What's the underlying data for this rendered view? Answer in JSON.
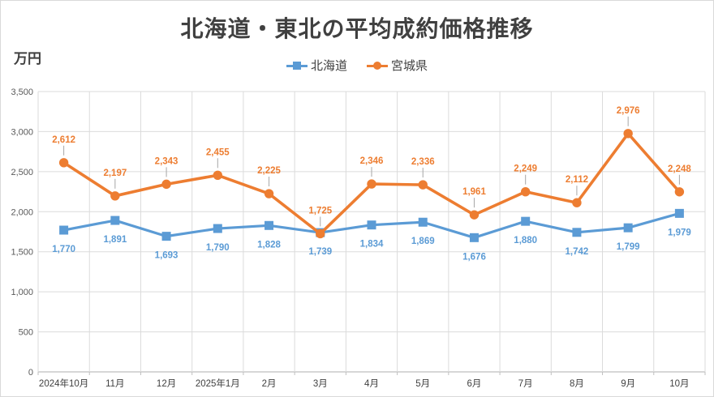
{
  "chart": {
    "title": "北海道・東北の平均成約価格推移",
    "unit_label": "万円"
  },
  "legend": {
    "items": [
      {
        "label": "北海道"
      },
      {
        "label": "宮城県"
      }
    ]
  },
  "chart_data": {
    "type": "line",
    "title": "北海道・東北の平均成約価格推移",
    "xlabel": "",
    "ylabel": "万円",
    "categories": [
      "2024年10月",
      "11月",
      "12月",
      "2025年1月",
      "2月",
      "3月",
      "4月",
      "5月",
      "6月",
      "7月",
      "8月",
      "9月",
      "10月"
    ],
    "series": [
      {
        "name": "北海道",
        "color": "#5B9BD5",
        "marker": "square",
        "label_position": "below",
        "values": [
          1770,
          1891,
          1693,
          1790,
          1828,
          1739,
          1834,
          1869,
          1676,
          1880,
          1742,
          1799,
          1979
        ]
      },
      {
        "name": "宮城県",
        "color": "#ED7D31",
        "marker": "circle",
        "label_position": "above",
        "values": [
          2612,
          2197,
          2343,
          2455,
          2225,
          1725,
          2346,
          2336,
          1961,
          2249,
          2112,
          2976,
          2248
        ]
      }
    ],
    "ylim": [
      0,
      3500
    ],
    "ytick_step": 500,
    "grid": true,
    "data_labels": true,
    "legend_position": "top"
  },
  "colors": {
    "series_hokkaido": "#5B9BD5",
    "series_miyagi": "#ED7D31",
    "gridline": "#DBDBDB",
    "axis_line": "#BFBFBF",
    "title_text": "#404040",
    "tick_text": "#595959",
    "label_leader": "#A6A6A6",
    "background": "#FFFFFF",
    "frame_border": "#D9D9D9"
  }
}
